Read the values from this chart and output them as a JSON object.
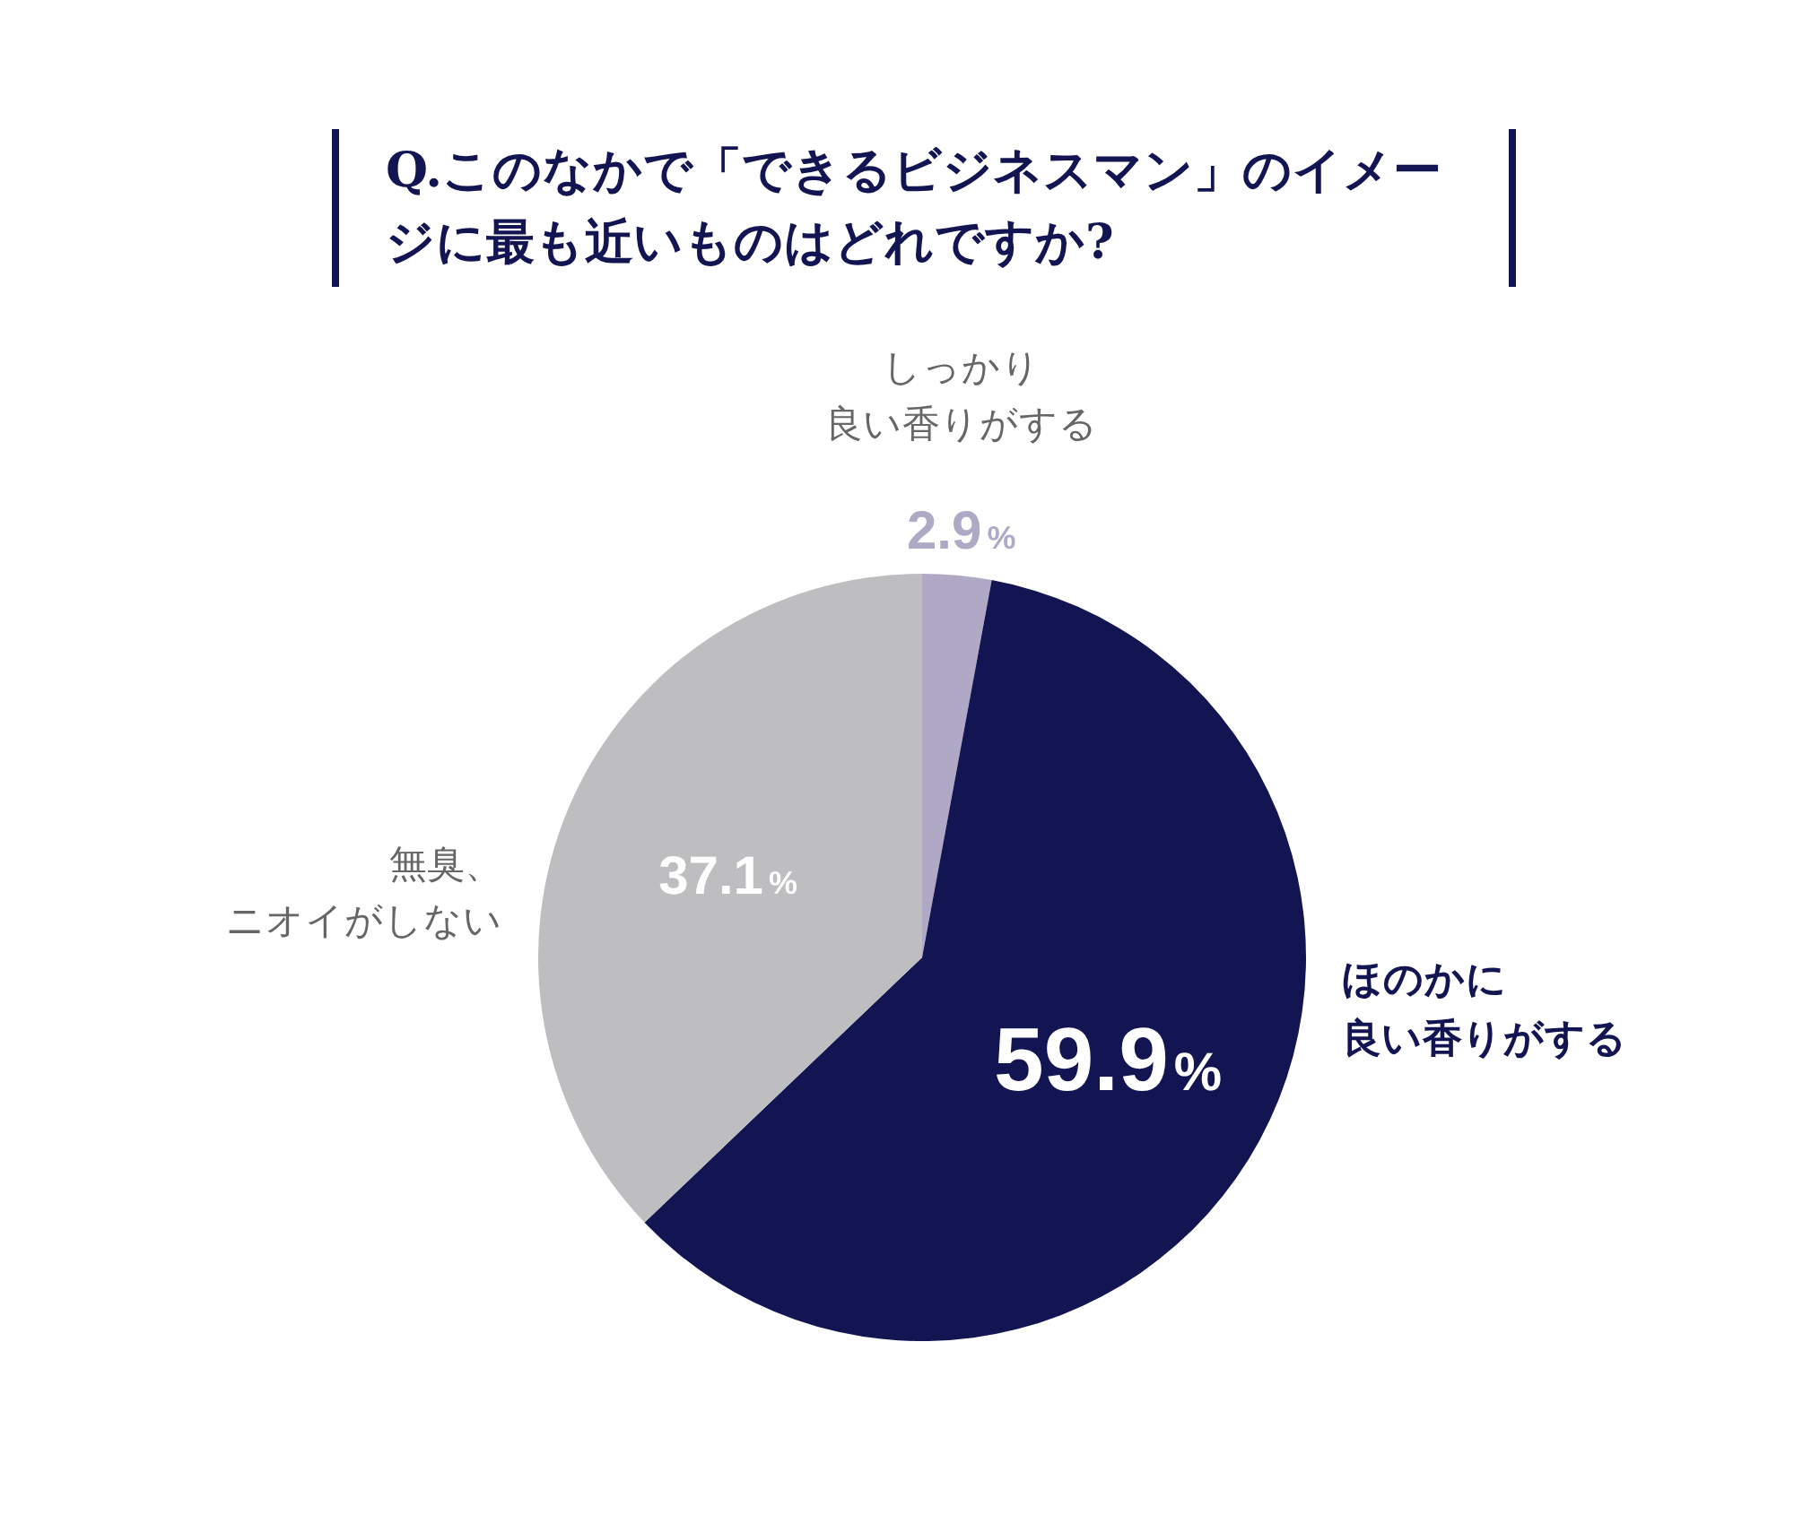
{
  "chart_data": {
    "type": "pie",
    "title": "Q.このなかで「できるビジネスマン」のイメージに最も近いものはどれですか?",
    "categories": [
      "しっかり良い香りがする",
      "ほのかに良い香りがする",
      "無臭、ニオイがしない"
    ],
    "values": [
      2.9,
      59.9,
      37.1
    ],
    "colors": [
      "#b0a9c6",
      "#131452",
      "#bebec0"
    ],
    "value_labels": [
      "2.9%",
      "59.9%",
      "37.1%"
    ],
    "legend": false
  }
}
